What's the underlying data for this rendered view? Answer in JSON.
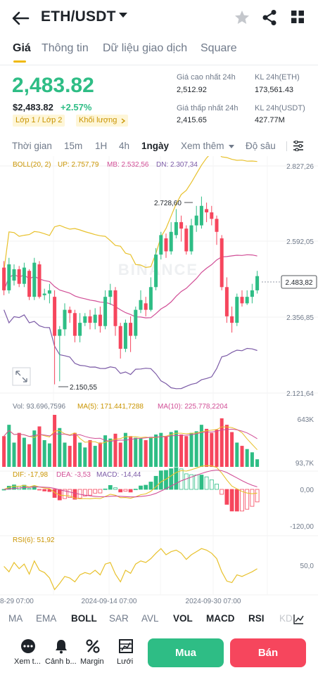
{
  "header": {
    "pair": "ETH/USDT"
  },
  "tabs": [
    {
      "label": "Giá",
      "active": true
    },
    {
      "label": "Thông tin",
      "active": false
    },
    {
      "label": "Dữ liệu giao dịch",
      "active": false
    },
    {
      "label": "Square",
      "active": false
    }
  ],
  "ticker": {
    "last_price": "2,483.82",
    "fiat_price": "$2,483.82",
    "change_pct": "+2.57%",
    "tag_layer": "Lớp 1 / Lớp 2",
    "tag_volume": "Khối lượng",
    "high_label": "Giá cao nhất 24h",
    "high_value": "2,512.92",
    "low_label": "Giá thấp nhất 24h",
    "low_value": "2,415.65",
    "vol_eth_label": "KL 24h(ETH)",
    "vol_eth_value": "173,561.43",
    "vol_usdt_label": "KL 24h(USDT)",
    "vol_usdt_value": "427.77M"
  },
  "intervals": {
    "items": [
      "Thời gian",
      "15m",
      "1H",
      "4h",
      "1ngày"
    ],
    "active": "1ngày",
    "more": "Xem thêm",
    "depth": "Độ sâu"
  },
  "indicators_legend": {
    "boll": "BOLL(20, 2)",
    "up": "UP: 2.757,79",
    "mb": "MB: 2.532,56",
    "dn": "DN: 2.307,34",
    "vol": "Vol: 93.696,7596",
    "ma5": "MA(5): 171.441,7288",
    "ma10": "MA(10): 225.778,2204",
    "dif": "DIF: -17,98",
    "dea": "DEA: -3,53",
    "macd": "MACD: -14,44",
    "rsi": "RSI(6): 51,92"
  },
  "axis_labels": {
    "p1": "2.827,26",
    "p2": "2.592,05",
    "p3": "2.356,85",
    "p4": "2.121,64",
    "last": "2.483,82",
    "max_mark": "2.728,60",
    "min_mark": "2.150,55",
    "vol_top": "643K",
    "vol_bot": "93,7K",
    "macd_zero": "0,00",
    "macd_low": "-120,00",
    "rsi_mid": "50,0",
    "date1": "8-29 07:00",
    "date2": "2024-09-14 07:00",
    "date3": "2024-09-30 07:00"
  },
  "watermark": "BINANCE",
  "indicator_tabs": [
    {
      "label": "MA",
      "on": false
    },
    {
      "label": "EMA",
      "on": false
    },
    {
      "label": "BOLL",
      "on": true
    },
    {
      "label": "SAR",
      "on": false
    },
    {
      "label": "AVL",
      "on": false
    },
    {
      "label": "VOL",
      "on": true
    },
    {
      "label": "MACD",
      "on": true
    },
    {
      "label": "RSI",
      "on": true
    },
    {
      "label": "KD",
      "on": false
    }
  ],
  "bottom": {
    "more": "Xem t...",
    "alert": "Cảnh b...",
    "margin": "Margin",
    "grid": "Lưới",
    "buy": "Mua",
    "sell": "Bán"
  },
  "colors": {
    "up": "#2ebd85",
    "down": "#f6465d",
    "accent": "#f0b90b",
    "boll_up": "#e8c12c",
    "boll_mb": "#d14e96",
    "boll_dn": "#7b5aa6"
  },
  "chart_data": {
    "type": "candlestick",
    "interval": "1 day",
    "candles": [
      {
        "o": 2510,
        "c": 2440,
        "h": 2530,
        "l": 2425
      },
      {
        "o": 2440,
        "c": 2520,
        "h": 2540,
        "l": 2430
      },
      {
        "o": 2470,
        "c": 2505,
        "h": 2520,
        "l": 2455
      },
      {
        "o": 2505,
        "c": 2460,
        "h": 2515,
        "l": 2450
      },
      {
        "o": 2460,
        "c": 2510,
        "h": 2525,
        "l": 2450
      },
      {
        "o": 2500,
        "c": 2420,
        "h": 2505,
        "l": 2410
      },
      {
        "o": 2420,
        "c": 2525,
        "h": 2540,
        "l": 2410
      },
      {
        "o": 2520,
        "c": 2420,
        "h": 2530,
        "l": 2415
      },
      {
        "o": 2425,
        "c": 2430,
        "h": 2445,
        "l": 2410
      },
      {
        "o": 2430,
        "c": 2440,
        "h": 2460,
        "l": 2400
      },
      {
        "o": 2420,
        "c": 2300,
        "h": 2440,
        "l": 2150.55
      },
      {
        "o": 2300,
        "c": 2320,
        "h": 2330,
        "l": 2160
      },
      {
        "o": 2320,
        "c": 2380,
        "h": 2400,
        "l": 2300
      },
      {
        "o": 2380,
        "c": 2370,
        "h": 2390,
        "l": 2340
      },
      {
        "o": 2370,
        "c": 2300,
        "h": 2380,
        "l": 2280
      },
      {
        "o": 2300,
        "c": 2340,
        "h": 2370,
        "l": 2280
      },
      {
        "o": 2340,
        "c": 2360,
        "h": 2370,
        "l": 2330
      },
      {
        "o": 2360,
        "c": 2340,
        "h": 2380,
        "l": 2320
      },
      {
        "o": 2340,
        "c": 2365,
        "h": 2385,
        "l": 2320
      },
      {
        "o": 2365,
        "c": 2330,
        "h": 2390,
        "l": 2310
      },
      {
        "o": 2330,
        "c": 2420,
        "h": 2440,
        "l": 2320
      },
      {
        "o": 2420,
        "c": 2440,
        "h": 2460,
        "l": 2395
      },
      {
        "o": 2440,
        "c": 2330,
        "h": 2450,
        "l": 2300
      },
      {
        "o": 2330,
        "c": 2260,
        "h": 2340,
        "l": 2230
      },
      {
        "o": 2260,
        "c": 2340,
        "h": 2350,
        "l": 2250
      },
      {
        "o": 2340,
        "c": 2300,
        "h": 2360,
        "l": 2250
      },
      {
        "o": 2300,
        "c": 2380,
        "h": 2390,
        "l": 2290
      },
      {
        "o": 2380,
        "c": 2410,
        "h": 2440,
        "l": 2370
      },
      {
        "o": 2400,
        "c": 2380,
        "h": 2420,
        "l": 2360
      },
      {
        "o": 2380,
        "c": 2450,
        "h": 2480,
        "l": 2375
      },
      {
        "o": 2450,
        "c": 2550,
        "h": 2570,
        "l": 2440
      },
      {
        "o": 2550,
        "c": 2610,
        "h": 2620,
        "l": 2535
      },
      {
        "o": 2600,
        "c": 2560,
        "h": 2615,
        "l": 2540
      },
      {
        "o": 2560,
        "c": 2620,
        "h": 2650,
        "l": 2550
      },
      {
        "o": 2610,
        "c": 2650,
        "h": 2690,
        "l": 2600
      },
      {
        "o": 2650,
        "c": 2630,
        "h": 2670,
        "l": 2590
      },
      {
        "o": 2630,
        "c": 2560,
        "h": 2640,
        "l": 2550
      },
      {
        "o": 2560,
        "c": 2640,
        "h": 2660,
        "l": 2550
      },
      {
        "o": 2640,
        "c": 2670,
        "h": 2700,
        "l": 2620
      },
      {
        "o": 2640,
        "c": 2700,
        "h": 2728.6,
        "l": 2630
      },
      {
        "o": 2690,
        "c": 2680,
        "h": 2710,
        "l": 2650
      },
      {
        "o": 2680,
        "c": 2660,
        "h": 2700,
        "l": 2640
      },
      {
        "o": 2660,
        "c": 2620,
        "h": 2670,
        "l": 2580
      },
      {
        "o": 2600,
        "c": 2450,
        "h": 2610,
        "l": 2440
      },
      {
        "o": 2450,
        "c": 2360,
        "h": 2480,
        "l": 2340
      },
      {
        "o": 2360,
        "c": 2340,
        "h": 2390,
        "l": 2310
      },
      {
        "o": 2340,
        "c": 2420,
        "h": 2430,
        "l": 2330
      },
      {
        "o": 2420,
        "c": 2400,
        "h": 2440,
        "l": 2390
      },
      {
        "o": 2400,
        "c": 2420,
        "h": 2440,
        "l": 2395
      },
      {
        "o": 2420,
        "c": 2440,
        "h": 2460,
        "l": 2400
      },
      {
        "o": 2440,
        "c": 2483.82,
        "h": 2500,
        "l": 2430
      }
    ],
    "volume": [
      380,
      520,
      300,
      420,
      360,
      280,
      450,
      500,
      330,
      290,
      643,
      480,
      300,
      260,
      420,
      300,
      240,
      330,
      260,
      300,
      390,
      350,
      410,
      300,
      420,
      380,
      360,
      350,
      330,
      370,
      400,
      420,
      380,
      430,
      450,
      400,
      380,
      420,
      440,
      520,
      470,
      420,
      460,
      600,
      520,
      430,
      300,
      260,
      220,
      180,
      93.7
    ],
    "ylim": [
      2121.64,
      2827.26
    ],
    "volume_ylim": [
      0,
      643
    ],
    "rsi": [
      55,
      48,
      60,
      52,
      58,
      45,
      62,
      50,
      47,
      40,
      25,
      33,
      42,
      40,
      35,
      44,
      47,
      45,
      50,
      44,
      58,
      60,
      45,
      35,
      50,
      46,
      58,
      62,
      60,
      65,
      72,
      78,
      70,
      74,
      76,
      72,
      64,
      70,
      74,
      78,
      76,
      72,
      65,
      48,
      36,
      34,
      44,
      42,
      45,
      48,
      51.92
    ]
  }
}
